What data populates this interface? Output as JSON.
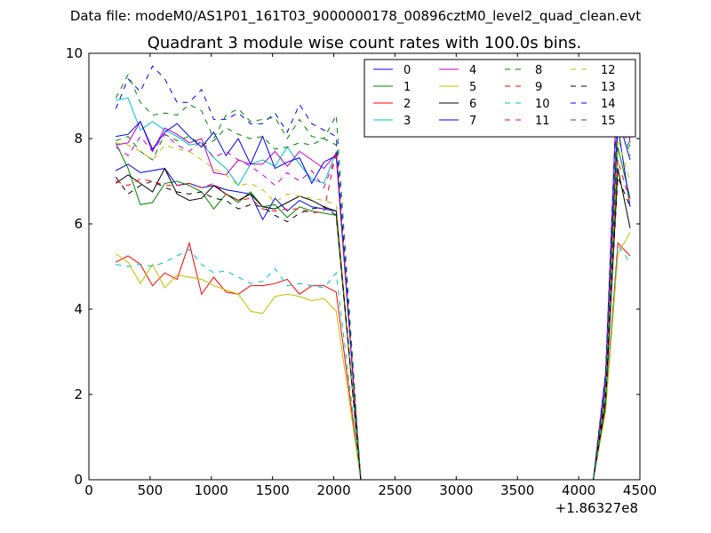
{
  "chart_data": {
    "type": "line",
    "suptitle": "Data file: modeM0/AS1P01_161T03_9000000178_00896cztM0_level2_quad_clean.evt",
    "title": "Quadrant 3 module wise count rates with 100.0s bins.",
    "xlabel": "",
    "ylabel": "",
    "x_offset_label": "+1.86327e8",
    "xlim": [
      0,
      4500
    ],
    "ylim": [
      0,
      10
    ],
    "xticks": [
      0,
      500,
      1000,
      1500,
      2000,
      2500,
      3000,
      3500,
      4000,
      4500
    ],
    "yticks": [
      0,
      2,
      4,
      6,
      8,
      10
    ],
    "x": [
      220,
      320,
      420,
      520,
      620,
      720,
      820,
      920,
      1020,
      1120,
      1220,
      1320,
      1420,
      1520,
      1620,
      1720,
      1820,
      1920,
      2020,
      2220,
      2420,
      2620,
      2820,
      3020,
      3220,
      3420,
      3620,
      3820,
      4120,
      4220,
      4320,
      4420
    ],
    "legend_position": "top-right",
    "series": [
      {
        "name": "0",
        "color": "#0000ff",
        "dash": "solid",
        "values": [
          7.25,
          7.4,
          7.2,
          7.25,
          7.3,
          6.9,
          6.95,
          6.85,
          6.9,
          6.8,
          6.75,
          6.7,
          6.1,
          6.6,
          6.3,
          6.55,
          6.4,
          6.35,
          6.3,
          0,
          0,
          0,
          0,
          0,
          0,
          0,
          0,
          0,
          0,
          2.4,
          8.5,
          7.5
        ]
      },
      {
        "name": "1",
        "color": "#008000",
        "dash": "solid",
        "values": [
          7.9,
          7.3,
          6.45,
          6.5,
          6.95,
          7.0,
          6.9,
          6.75,
          6.35,
          6.7,
          6.5,
          6.75,
          6.4,
          6.45,
          6.15,
          6.4,
          6.3,
          6.25,
          6.2,
          0,
          0,
          0,
          0,
          0,
          0,
          0,
          0,
          0,
          0,
          2.0,
          7.8,
          6.6
        ]
      },
      {
        "name": "2",
        "color": "#ff0000",
        "dash": "solid",
        "values": [
          5.1,
          5.25,
          5.05,
          4.55,
          4.85,
          4.7,
          5.55,
          4.35,
          4.75,
          4.4,
          4.35,
          4.55,
          4.55,
          4.6,
          4.7,
          4.35,
          4.55,
          4.55,
          4.4,
          0,
          0,
          0,
          0,
          0,
          0,
          0,
          0,
          0,
          0,
          1.7,
          5.55,
          5.25
        ]
      },
      {
        "name": "3",
        "color": "#00bfbf",
        "dash": "solid",
        "values": [
          8.9,
          8.95,
          8.2,
          8.4,
          8.2,
          8.05,
          7.85,
          7.9,
          7.55,
          7.3,
          6.9,
          7.4,
          7.5,
          7.35,
          7.8,
          7.4,
          7.05,
          6.95,
          7.7,
          0,
          0,
          0,
          0,
          0,
          0,
          0,
          0,
          0,
          0,
          2.3,
          9.5,
          8.4
        ]
      },
      {
        "name": "4",
        "color": "#bf00bf",
        "dash": "solid",
        "values": [
          7.85,
          7.9,
          8.4,
          7.7,
          8.25,
          8.1,
          7.9,
          8.0,
          7.2,
          7.15,
          7.5,
          7.4,
          7.4,
          7.7,
          7.35,
          7.7,
          7.5,
          7.3,
          7.65,
          0,
          0,
          0,
          0,
          0,
          0,
          0,
          0,
          0,
          0,
          2.5,
          9.7,
          7.9
        ]
      },
      {
        "name": "5",
        "color": "#bfbf00",
        "dash": "solid",
        "values": [
          5.3,
          5.1,
          4.6,
          5.05,
          4.5,
          4.8,
          4.75,
          4.7,
          4.55,
          4.45,
          4.35,
          3.95,
          3.9,
          4.3,
          4.35,
          4.3,
          4.2,
          4.25,
          3.95,
          0,
          0,
          0,
          0,
          0,
          0,
          0,
          0,
          0,
          0,
          1.6,
          5.3,
          5.8
        ]
      },
      {
        "name": "6",
        "color": "#000000",
        "dash": "solid",
        "values": [
          6.95,
          7.15,
          6.95,
          6.75,
          7.3,
          6.7,
          6.55,
          6.6,
          6.9,
          6.7,
          6.55,
          6.7,
          6.4,
          6.35,
          6.5,
          6.65,
          6.55,
          6.4,
          6.3,
          0,
          0,
          0,
          0,
          0,
          0,
          0,
          0,
          0,
          0,
          1.8,
          7.3,
          5.9
        ]
      },
      {
        "name": "7",
        "color": "#0000ff",
        "dash": "solid",
        "values": [
          8.05,
          8.1,
          8.4,
          7.75,
          8.15,
          8.35,
          8.05,
          7.8,
          8.15,
          7.6,
          8.0,
          7.4,
          8.05,
          7.3,
          7.45,
          7.55,
          6.95,
          7.45,
          7.6,
          0,
          0,
          0,
          0,
          0,
          0,
          0,
          0,
          0,
          0,
          2.2,
          8.3,
          6.4
        ]
      },
      {
        "name": "8",
        "color": "#008000",
        "dash": "dashed",
        "values": [
          7.95,
          8.05,
          7.7,
          7.5,
          8.1,
          7.95,
          8.05,
          7.85,
          7.95,
          8.25,
          8.1,
          8.0,
          8.05,
          7.75,
          7.8,
          7.9,
          7.85,
          8.0,
          7.85,
          0,
          0,
          0,
          0,
          0,
          0,
          0,
          0,
          0,
          0,
          2.3,
          8.6,
          7.8
        ]
      },
      {
        "name": "9",
        "color": "#ff0000",
        "dash": "dashed",
        "values": [
          7.0,
          6.9,
          7.05,
          7.0,
          6.9,
          6.9,
          6.95,
          6.85,
          6.95,
          6.7,
          6.55,
          6.6,
          6.35,
          6.3,
          6.35,
          6.35,
          6.25,
          6.3,
          7.7,
          0,
          0,
          0,
          0,
          0,
          0,
          0,
          0,
          0,
          0,
          2.0,
          7.5,
          6.5
        ]
      },
      {
        "name": "10",
        "color": "#00bfbf",
        "dash": "dashed",
        "values": [
          5.05,
          5.0,
          5.05,
          5.0,
          5.1,
          5.25,
          5.4,
          5.05,
          4.85,
          4.9,
          4.75,
          4.6,
          4.65,
          4.95,
          4.55,
          4.6,
          4.55,
          4.5,
          4.85,
          0,
          0,
          0,
          0,
          0,
          0,
          0,
          0,
          0,
          0,
          1.9,
          5.5,
          5.1
        ]
      },
      {
        "name": "11",
        "color": "#bf00bf",
        "dash": "dashed",
        "values": [
          7.8,
          7.6,
          8.05,
          7.7,
          8.1,
          7.85,
          7.7,
          7.95,
          7.55,
          7.7,
          7.5,
          7.35,
          7.15,
          6.9,
          7.2,
          7.0,
          7.25,
          6.85,
          7.6,
          0,
          0,
          0,
          0,
          0,
          0,
          0,
          0,
          0,
          0,
          2.3,
          9.2,
          8.0
        ]
      },
      {
        "name": "12",
        "color": "#bfbf00",
        "dash": "dashed",
        "values": [
          7.9,
          7.85,
          7.7,
          7.5,
          7.85,
          7.75,
          7.7,
          7.5,
          7.3,
          7.15,
          6.9,
          6.95,
          6.8,
          6.5,
          6.7,
          6.65,
          6.6,
          6.55,
          6.45,
          0,
          0,
          0,
          0,
          0,
          0,
          0,
          0,
          0,
          0,
          2.1,
          8.0,
          7.0
        ]
      },
      {
        "name": "13",
        "color": "#000000",
        "dash": "dashed",
        "values": [
          7.1,
          6.7,
          6.9,
          7.0,
          6.85,
          6.75,
          6.7,
          6.75,
          6.6,
          6.55,
          6.35,
          6.45,
          6.4,
          6.2,
          6.05,
          6.25,
          6.35,
          6.4,
          6.2,
          0,
          0,
          0,
          0,
          0,
          0,
          0,
          0,
          0,
          0,
          2.0,
          7.1,
          6.4
        ]
      },
      {
        "name": "14",
        "color": "#0000ff",
        "dash": "dashed",
        "values": [
          8.7,
          9.4,
          9.1,
          9.7,
          9.4,
          8.85,
          8.85,
          9.15,
          8.45,
          8.45,
          8.6,
          8.35,
          8.35,
          8.6,
          8.15,
          8.8,
          8.35,
          8.2,
          8.05,
          0,
          0,
          0,
          0,
          0,
          0,
          0,
          0,
          0,
          0,
          2.5,
          9.6,
          8.3
        ]
      },
      {
        "name": "15",
        "color": "#008000",
        "dash": "dashed",
        "values": [
          8.95,
          9.5,
          8.85,
          8.55,
          8.6,
          8.55,
          8.8,
          8.65,
          8.0,
          8.55,
          8.7,
          8.4,
          8.45,
          8.5,
          8.0,
          8.45,
          8.05,
          8.0,
          8.55,
          0,
          0,
          0,
          0,
          0,
          0,
          0,
          0,
          0,
          0,
          2.2,
          8.8,
          7.6
        ]
      }
    ]
  }
}
